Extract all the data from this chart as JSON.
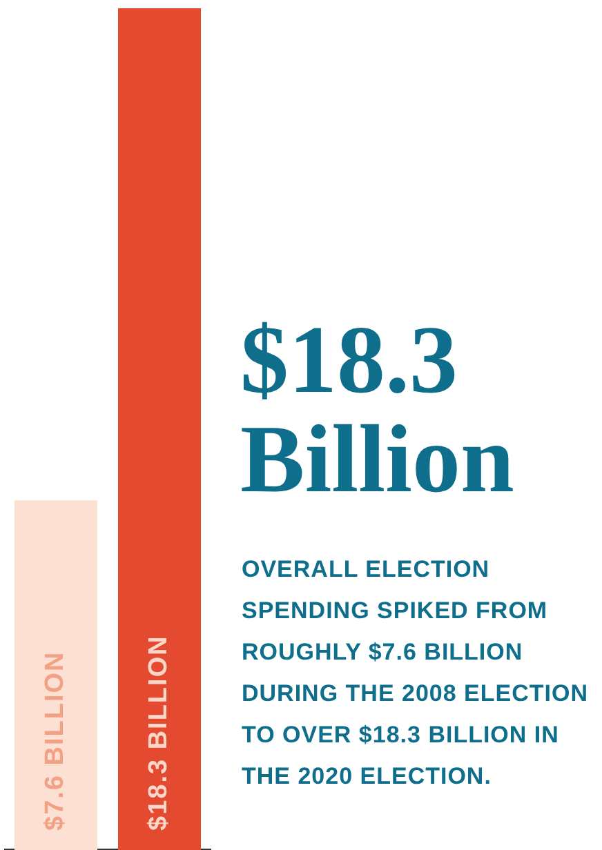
{
  "chart_data": {
    "type": "bar",
    "title": "$18.3 Billion",
    "subtitle": "OVERALL ELECTION SPENDING SPIKED FROM ROUGHLY $7.6 BILLION DURING THE 2008 ELECTION TO OVER $18.3 BILLION IN THE 2020 ELECTION.",
    "categories": [
      null,
      null
    ],
    "values": [
      7.6,
      18.3
    ],
    "colors": [
      "#fce0d4",
      "#e34a2f"
    ],
    "value_labels": [
      "$7.6 BILLION",
      "$18.3 BILLION"
    ],
    "grid": false,
    "legend": false
  }
}
